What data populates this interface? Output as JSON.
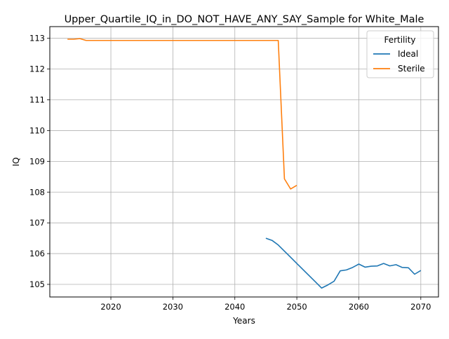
{
  "chart_data": {
    "type": "line",
    "title": "Upper_Quartile_IQ_in_DO_NOT_HAVE_ANY_SAY_Sample for White_Male",
    "xlabel": "Years",
    "ylabel": "IQ",
    "xlim": [
      2010.15,
      2072.85
    ],
    "ylim": [
      104.59,
      113.38
    ],
    "xticks": [
      2020,
      2030,
      2040,
      2050,
      2060,
      2070
    ],
    "yticks": [
      105,
      106,
      107,
      108,
      109,
      110,
      111,
      112,
      113
    ],
    "grid": true,
    "legend": {
      "title": "Fertility",
      "placement": "top-right"
    },
    "series": [
      {
        "name": "Ideal",
        "color": "#1f77b4",
        "x": [
          2045,
          2046,
          2047,
          2048,
          2049,
          2050,
          2051,
          2052,
          2053,
          2054,
          2055,
          2056,
          2057,
          2058,
          2059,
          2060,
          2061,
          2062,
          2063,
          2064,
          2065,
          2066,
          2067,
          2068,
          2069,
          2070
        ],
        "y": [
          106.5,
          106.43,
          106.28,
          106.08,
          105.88,
          105.68,
          105.48,
          105.28,
          105.08,
          104.88,
          104.98,
          105.1,
          105.44,
          105.47,
          105.55,
          105.66,
          105.56,
          105.59,
          105.6,
          105.68,
          105.6,
          105.64,
          105.55,
          105.54,
          105.33,
          105.45
        ]
      },
      {
        "name": "Sterile",
        "color": "#ff7f0e",
        "x": [
          2013,
          2014,
          2015,
          2016,
          2017,
          2018,
          2019,
          2020,
          2021,
          2022,
          2023,
          2024,
          2025,
          2026,
          2027,
          2028,
          2029,
          2030,
          2031,
          2032,
          2033,
          2034,
          2035,
          2036,
          2037,
          2038,
          2039,
          2040,
          2041,
          2042,
          2043,
          2044,
          2045,
          2046,
          2047,
          2048,
          2049,
          2050
        ],
        "y": [
          112.97,
          112.97,
          112.99,
          112.93,
          112.93,
          112.93,
          112.93,
          112.93,
          112.93,
          112.93,
          112.93,
          112.93,
          112.93,
          112.93,
          112.93,
          112.93,
          112.93,
          112.93,
          112.93,
          112.93,
          112.93,
          112.93,
          112.93,
          112.93,
          112.93,
          112.93,
          112.93,
          112.93,
          112.93,
          112.93,
          112.93,
          112.93,
          112.93,
          112.93,
          112.93,
          108.43,
          108.1,
          108.22
        ]
      }
    ]
  }
}
